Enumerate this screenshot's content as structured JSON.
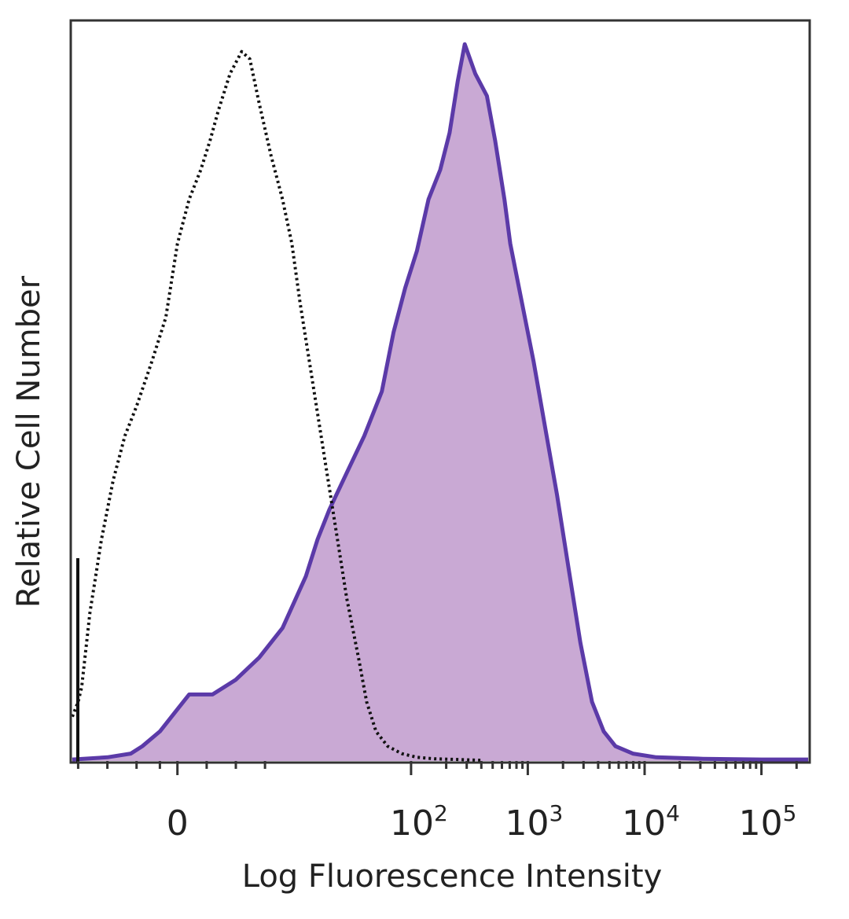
{
  "chart_data": {
    "type": "area",
    "title": "",
    "xlabel": "Log Fluorescence Intensity",
    "ylabel": "Relative Cell Number",
    "x_scale": "biexponential (log above 10^2)",
    "xlim_decades": [
      -0.9,
      5.4
    ],
    "ylim_percent": [
      0,
      100
    ],
    "grid": false,
    "legend": "none",
    "x_tick_labels": [
      {
        "value": 0,
        "base": "0",
        "exp": ""
      },
      {
        "value": 2,
        "base": "10",
        "exp": "2"
      },
      {
        "value": 3,
        "base": "10",
        "exp": "3"
      },
      {
        "value": 4,
        "base": "10",
        "exp": "4"
      },
      {
        "value": 5,
        "base": "10",
        "exp": "5"
      }
    ],
    "series": [
      {
        "style": "dotted-outline",
        "color": "#111111",
        "x": [
          -0.9,
          -0.85,
          -0.82,
          -0.75,
          -0.65,
          -0.55,
          -0.45,
          -0.35,
          -0.22,
          -0.1,
          0.0,
          0.1,
          0.2,
          0.28,
          0.35,
          0.45,
          0.55,
          0.62,
          0.7,
          0.8,
          0.9,
          0.98,
          1.05,
          1.15,
          1.25,
          1.35,
          1.45,
          1.55,
          1.62,
          1.7,
          1.8,
          1.92,
          2.05,
          2.2,
          2.4,
          2.6
        ],
        "y": [
          6,
          8,
          10,
          20,
          30,
          38,
          44,
          48,
          54,
          60,
          70,
          76,
          80,
          84,
          88,
          93,
          96,
          95,
          89,
          82,
          76,
          70,
          62,
          52,
          42,
          32,
          22,
          14,
          8,
          4,
          2,
          1,
          0.5,
          0.3,
          0.2,
          0.1
        ]
      },
      {
        "style": "filled",
        "color": "#5b3aa8",
        "fill": "#c9a9d4",
        "x": [
          -0.9,
          -0.6,
          -0.4,
          -0.3,
          -0.15,
          0.0,
          0.1,
          0.3,
          0.5,
          0.7,
          0.9,
          1.1,
          1.2,
          1.3,
          1.45,
          1.6,
          1.75,
          1.85,
          1.95,
          2.05,
          2.15,
          2.25,
          2.33,
          2.4,
          2.46,
          2.55,
          2.65,
          2.72,
          2.8,
          2.85,
          2.95,
          3.05,
          3.15,
          3.25,
          3.35,
          3.45,
          3.55,
          3.65,
          3.75,
          3.9,
          4.1,
          4.5,
          5.0,
          5.4
        ],
        "y": [
          0.2,
          0.5,
          1,
          2,
          4,
          7,
          9,
          9,
          11,
          14,
          18,
          25,
          30,
          34,
          39,
          44,
          50,
          58,
          64,
          69,
          76,
          80,
          85,
          92,
          97,
          93,
          90,
          84,
          76,
          70,
          62,
          54,
          45,
          36,
          26,
          16,
          8,
          4,
          2,
          1,
          0.5,
          0.3,
          0.2,
          0.2
        ]
      }
    ]
  }
}
